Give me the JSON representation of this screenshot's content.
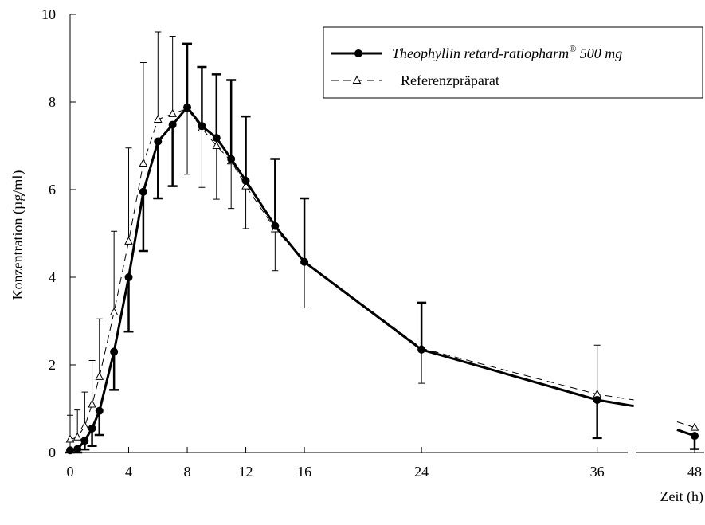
{
  "chart_data": {
    "type": "line",
    "xlabel": "Zeit (h)",
    "ylabel": "Konzentration (µg/ml)",
    "xlim": [
      0,
      48
    ],
    "ylim": [
      0,
      10
    ],
    "x_ticks": [
      0,
      4,
      8,
      12,
      16,
      24,
      36,
      48
    ],
    "x_tick_labels": [
      "0",
      "4",
      "8",
      "12",
      "16",
      "24",
      "36",
      "48"
    ],
    "y_ticks": [
      0,
      2,
      4,
      6,
      8,
      10
    ],
    "y_tick_labels": [
      "0",
      "2",
      "4",
      "6",
      "8",
      "10"
    ],
    "x_axis_break": "between 36 and 48",
    "grid": false,
    "legend_position": "top-right",
    "series": [
      {
        "name": "Theophyllin retard-ratiopharm",
        "name_superscript": "®",
        "name_suffix": " 500 mg",
        "style": "solid thick line, filled circles",
        "error_bars": "one-sided (upper above, lower below), thick",
        "points": [
          {
            "x": 0,
            "y": 0.05,
            "err_lo": 0.05
          },
          {
            "x": 0.5,
            "y": 0.08,
            "err_lo": 0.08
          },
          {
            "x": 1,
            "y": 0.27,
            "err_lo": 0.2
          },
          {
            "x": 1.5,
            "y": 0.55,
            "err_lo": 0.4
          },
          {
            "x": 2,
            "y": 0.95,
            "err_lo": 0.55
          },
          {
            "x": 3,
            "y": 2.3,
            "err_lo": 0.87
          },
          {
            "x": 4,
            "y": 4.0,
            "err_lo": 1.24
          },
          {
            "x": 5,
            "y": 5.95,
            "err_lo": 1.35
          },
          {
            "x": 6,
            "y": 7.1,
            "err_lo": 1.3
          },
          {
            "x": 7,
            "y": 7.48,
            "err_lo": 1.4
          },
          {
            "x": 8,
            "y": 7.88,
            "err_hi": 1.45
          },
          {
            "x": 9,
            "y": 7.45,
            "err_hi": 1.35
          },
          {
            "x": 10,
            "y": 7.18,
            "err_hi": 1.45
          },
          {
            "x": 11,
            "y": 6.7,
            "err_hi": 1.8
          },
          {
            "x": 12,
            "y": 6.2,
            "err_hi": 1.47
          },
          {
            "x": 14,
            "y": 5.17,
            "err_hi": 1.53
          },
          {
            "x": 16,
            "y": 4.35,
            "err_hi": 1.45
          },
          {
            "x": 24,
            "y": 2.35,
            "err_hi": 1.07
          },
          {
            "x": 36,
            "y": 1.2,
            "err_lo": 0.87
          },
          {
            "x": 48,
            "y": 0.38,
            "err_lo": 0.3
          }
        ],
        "segments_after_last": [
          {
            "from": [
              36,
              1.2
            ],
            "to": [
              38.5,
              1.06
            ]
          },
          {
            "from": [
              46.8,
              0.52
            ],
            "to": [
              48,
              0.38
            ]
          }
        ]
      },
      {
        "name": "Referenzpräparat",
        "style": "thin dashed line, open triangles",
        "error_bars": "one-sided (upper above before peak, lower below after peak), thin",
        "points": [
          {
            "x": 0,
            "y": 0.3,
            "err_hi": 0.55
          },
          {
            "x": 0.5,
            "y": 0.35,
            "err_hi": 0.62
          },
          {
            "x": 1,
            "y": 0.6,
            "err_hi": 0.78
          },
          {
            "x": 1.5,
            "y": 1.1,
            "err_hi": 1.0
          },
          {
            "x": 2,
            "y": 1.73,
            "err_hi": 1.32
          },
          {
            "x": 3,
            "y": 3.2,
            "err_hi": 1.85
          },
          {
            "x": 4,
            "y": 4.82,
            "err_hi": 2.13
          },
          {
            "x": 5,
            "y": 6.6,
            "err_hi": 2.3
          },
          {
            "x": 6,
            "y": 7.6,
            "err_hi": 2.0
          },
          {
            "x": 7,
            "y": 7.73,
            "err_hi": 1.77
          },
          {
            "x": 8,
            "y": 7.85,
            "err_lo": 1.5
          },
          {
            "x": 9,
            "y": 7.4,
            "err_lo": 1.35
          },
          {
            "x": 10,
            "y": 7.0,
            "err_lo": 1.22
          },
          {
            "x": 11,
            "y": 6.65,
            "err_lo": 1.08
          },
          {
            "x": 12,
            "y": 6.08,
            "err_lo": 0.97
          },
          {
            "x": 14,
            "y": 5.1,
            "err_lo": 0.95
          },
          {
            "x": 16,
            "y": 4.37,
            "err_lo": 1.07
          },
          {
            "x": 24,
            "y": 2.38,
            "err_lo": 0.8
          },
          {
            "x": 36,
            "y": 1.33,
            "err_hi": 1.12
          },
          {
            "x": 48,
            "y": 0.57
          }
        ],
        "segments_after_last": [
          {
            "from": [
              36,
              1.33
            ],
            "to": [
              38.5,
              1.2
            ]
          },
          {
            "from": [
              46.8,
              0.7
            ],
            "to": [
              48,
              0.57
            ]
          }
        ]
      }
    ]
  }
}
